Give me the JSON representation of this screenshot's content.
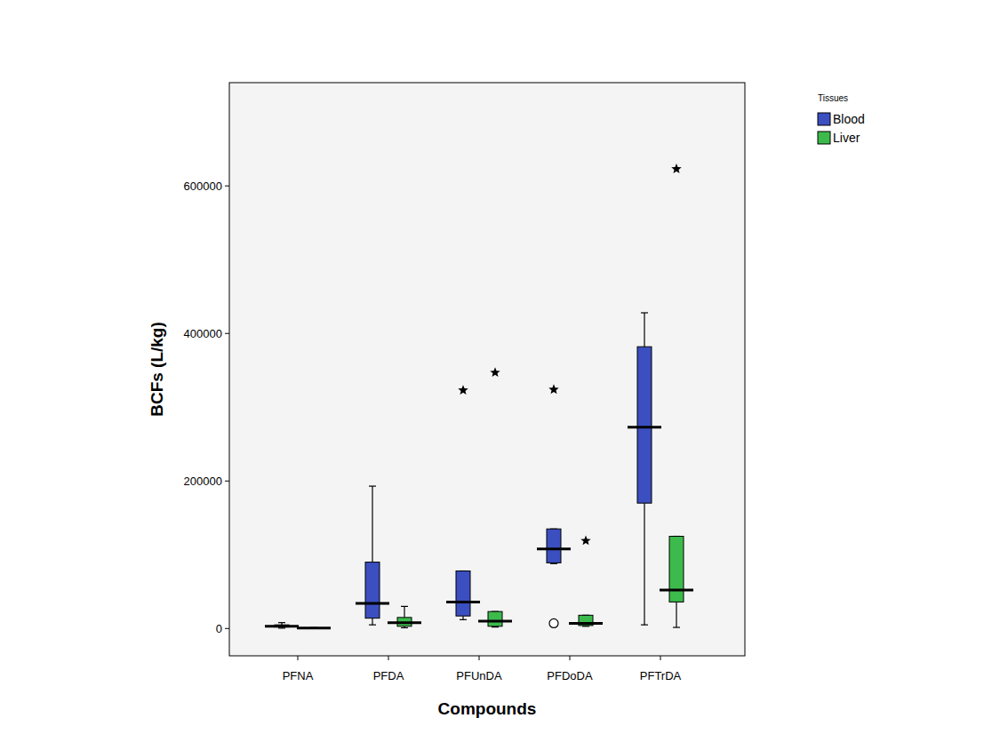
{
  "chart_data": {
    "type": "box",
    "x_label": "Compounds",
    "y_label": "BCFs (L/kg)",
    "legend_title": "Tissues",
    "legend": "right",
    "categories": [
      "PFNA",
      "PFDA",
      "PFUnDA",
      "PFDoDA",
      "PFTrDA"
    ],
    "ylim": [
      -37000,
      740000
    ],
    "yticks": [
      0,
      200000,
      400000,
      600000
    ],
    "grid": false,
    "series": [
      {
        "name": "Blood",
        "color": "#3b4fc1",
        "min": [
          500,
          5000,
          12000,
          88000,
          5000
        ],
        "q1": [
          2000,
          14000,
          17000,
          89000,
          170000
        ],
        "median": [
          3000,
          34000,
          36000,
          108000,
          273000
        ],
        "q3": [
          5000,
          90000,
          78000,
          135000,
          382000
        ],
        "max": [
          8000,
          193000,
          78000,
          135000,
          428000
        ],
        "outliers": [
          [],
          [],
          [],
          [
            7000
          ],
          []
        ],
        "extremes": [
          [],
          [],
          [
            323000
          ],
          [
            324000
          ],
          []
        ]
      },
      {
        "name": "Liver",
        "color": "#3cbb4c",
        "min": [
          0,
          1000,
          2000,
          3000,
          1500
        ],
        "q1": [
          200,
          3000,
          3000,
          4000,
          36000
        ],
        "median": [
          500,
          8000,
          10000,
          7000,
          52000
        ],
        "q3": [
          800,
          15000,
          23000,
          18000,
          125000
        ],
        "max": [
          1200,
          30000,
          23000,
          18000,
          125000
        ],
        "outliers": [
          [],
          [],
          [],
          [],
          []
        ],
        "extremes": [
          [],
          [],
          [
            347000
          ],
          [
            119000
          ],
          [
            623000
          ]
        ]
      }
    ]
  }
}
